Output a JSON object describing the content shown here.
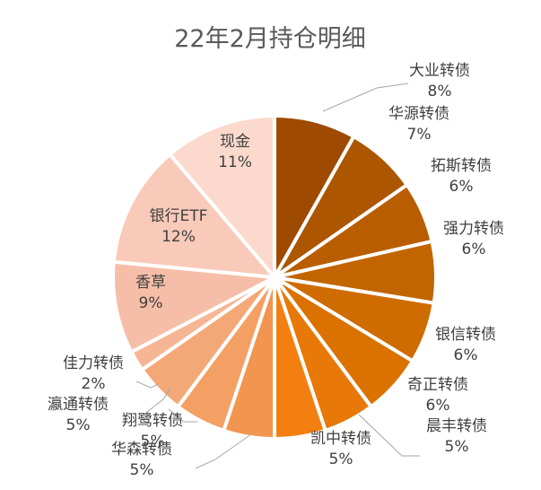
{
  "chart_data": {
    "type": "pie",
    "title": "22年2月持仓明细",
    "slices": [
      {
        "name": "大业转债",
        "value": 8,
        "label": "8%",
        "color": "#9E4A00"
      },
      {
        "name": "华源转债",
        "value": 7,
        "label": "7%",
        "color": "#AC5600"
      },
      {
        "name": "拓斯转债",
        "value": 6,
        "label": "6%",
        "color": "#B95E00"
      },
      {
        "name": "强力转债",
        "value": 6,
        "label": "6%",
        "color": "#C26500"
      },
      {
        "name": "银信转债",
        "value": 6,
        "label": "6%",
        "color": "#CF6C00"
      },
      {
        "name": "奇正转债",
        "value": 6,
        "label": "6%",
        "color": "#DB7200"
      },
      {
        "name": "晨丰转债",
        "value": 5,
        "label": "5%",
        "color": "#E87808"
      },
      {
        "name": "凯中转债",
        "value": 5,
        "label": "5%",
        "color": "#F37F10"
      },
      {
        "name": "华森转债",
        "value": 5,
        "label": "5%",
        "color": "#F29550"
      },
      {
        "name": "翔鹭转债",
        "value": 5,
        "label": "5%",
        "color": "#F4A064"
      },
      {
        "name": "瀛通转债",
        "value": 5,
        "label": "5%",
        "color": "#F4A878"
      },
      {
        "name": "佳力转债",
        "value": 2,
        "label": "2%",
        "color": "#F6B696"
      },
      {
        "name": "香草",
        "value": 9,
        "label": "9%",
        "color": "#F6BEA8"
      },
      {
        "name": "银行ETF",
        "value": 12,
        "label": "12%",
        "color": "#F9CAB9"
      },
      {
        "name": "现金",
        "value": 11,
        "label": "11%",
        "color": "#FBD9CC"
      }
    ],
    "legend": "none"
  }
}
